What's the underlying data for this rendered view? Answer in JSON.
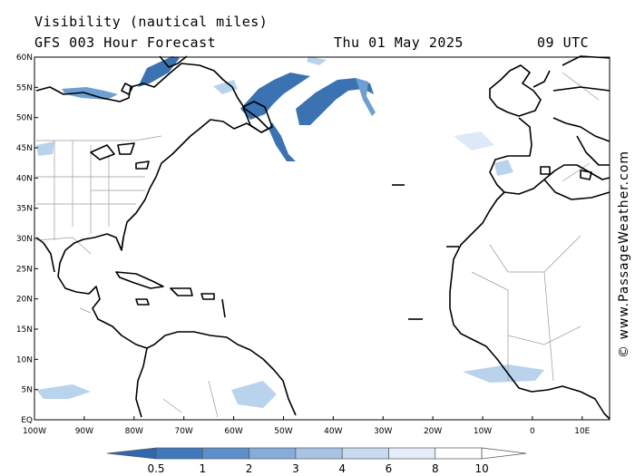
{
  "header": {
    "title": "Visibility (nautical miles)",
    "subtitle": "GFS 003 Hour Forecast",
    "date": "Thu 01 May 2025",
    "time": "09 UTC"
  },
  "credit": "© www.PassageWeather.com",
  "map": {
    "lat_labels": [
      "60N",
      "55N",
      "50N",
      "45N",
      "40N",
      "35N",
      "30N",
      "25N",
      "20N",
      "15N",
      "10N",
      "5N",
      "EQ"
    ],
    "lon_labels": [
      "100W",
      "90W",
      "80W",
      "70W",
      "60W",
      "50W",
      "40W",
      "30W",
      "20W",
      "10W",
      "0",
      "10E"
    ],
    "colors": {
      "ocean": "#ffffff",
      "land": "#ffffff",
      "coast": "#000000",
      "borders": "#9a9a9a",
      "low_vis_dark": "#3a72b2",
      "low_vis_mid": "#6e9fd2",
      "low_vis_light": "#b9d3ec"
    }
  },
  "colorbar": {
    "labels": [
      "0.5",
      "1",
      "2",
      "3",
      "4",
      "6",
      "8",
      "10"
    ],
    "colors": [
      "#2f69ad",
      "#3f78bb",
      "#5d8fcb",
      "#86acd9",
      "#a8c4e5",
      "#c7daf0",
      "#e4edf8",
      "#ffffff"
    ]
  }
}
